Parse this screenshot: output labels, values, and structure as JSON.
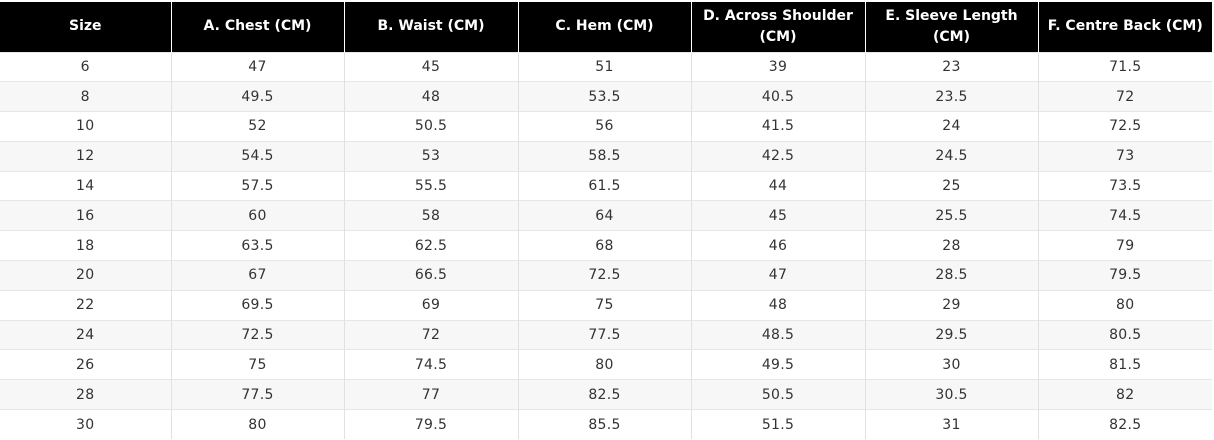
{
  "size_chart": {
    "headers": [
      "Size",
      "A. Chest (CM)",
      "B. Waist (CM)",
      "C. Hem (CM)",
      "D. Across Shoulder (CM)",
      "E. Sleeve Length (CM)",
      "F. Centre Back (CM)"
    ],
    "rows": [
      [
        "6",
        "47",
        "45",
        "51",
        "39",
        "23",
        "71.5"
      ],
      [
        "8",
        "49.5",
        "48",
        "53.5",
        "40.5",
        "23.5",
        "72"
      ],
      [
        "10",
        "52",
        "50.5",
        "56",
        "41.5",
        "24",
        "72.5"
      ],
      [
        "12",
        "54.5",
        "53",
        "58.5",
        "42.5",
        "24.5",
        "73"
      ],
      [
        "14",
        "57.5",
        "55.5",
        "61.5",
        "44",
        "25",
        "73.5"
      ],
      [
        "16",
        "60",
        "58",
        "64",
        "45",
        "25.5",
        "74.5"
      ],
      [
        "18",
        "63.5",
        "62.5",
        "68",
        "46",
        "28",
        "79"
      ],
      [
        "20",
        "67",
        "66.5",
        "72.5",
        "47",
        "28.5",
        "79.5"
      ],
      [
        "22",
        "69.5",
        "69",
        "75",
        "48",
        "29",
        "80"
      ],
      [
        "24",
        "72.5",
        "72",
        "77.5",
        "48.5",
        "29.5",
        "80.5"
      ],
      [
        "26",
        "75",
        "74.5",
        "80",
        "49.5",
        "30",
        "81.5"
      ],
      [
        "28",
        "77.5",
        "77",
        "82.5",
        "50.5",
        "30.5",
        "82"
      ],
      [
        "30",
        "80",
        "79.5",
        "85.5",
        "51.5",
        "31",
        "82.5"
      ]
    ]
  },
  "colors": {
    "header_background": "#000000",
    "header_text": "#ffffff",
    "body_text": "#333333",
    "striped_row": "#f7f7f7",
    "grid_line": "#e1e1e1"
  }
}
